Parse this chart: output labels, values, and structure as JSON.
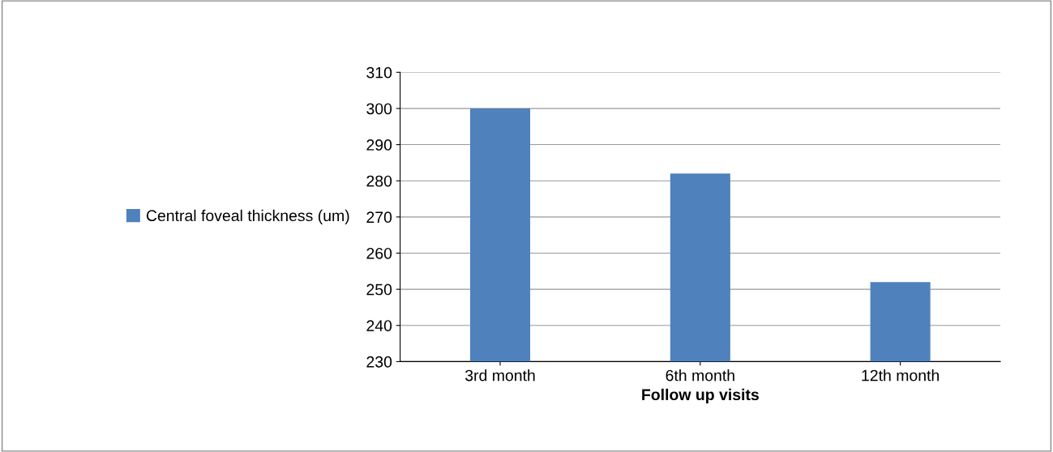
{
  "chart_data": {
    "type": "bar",
    "xlabel": "Follow up visits",
    "categories": [
      "3rd month",
      "6th month",
      "12th month"
    ],
    "series": [
      {
        "name": "Central foveal thickness (um)",
        "color": "#4f81bd",
        "values": [
          300,
          282,
          252
        ]
      }
    ],
    "ylim": [
      230,
      310
    ],
    "yticks": [
      230,
      240,
      250,
      260,
      270,
      280,
      290,
      300,
      310
    ],
    "grid": "y",
    "legend": "left"
  }
}
